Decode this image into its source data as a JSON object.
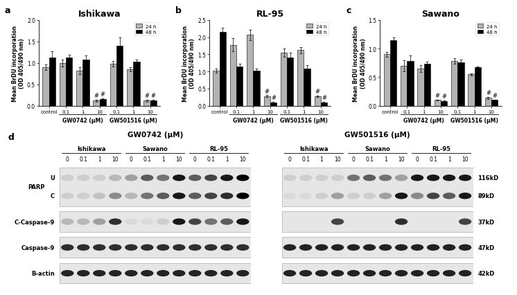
{
  "chart_data": [
    {
      "type": "bar",
      "panel": "a",
      "title": "Ishikawa",
      "y_label": "Mean BrDU incorporation\n(OD 405/490 nm)",
      "categories": [
        "control",
        "0.1",
        "1",
        "10",
        "0.1",
        "1",
        "10"
      ],
      "groups": [
        {
          "label": "GW0742 (μM)",
          "indices": [
            1,
            2,
            3
          ]
        },
        {
          "label": "GW501516 (μM)",
          "indices": [
            4,
            5,
            6
          ]
        }
      ],
      "series": [
        {
          "name": "24 h",
          "color": "#b3b3b3",
          "values": [
            0.9,
            1.0,
            0.82,
            0.12,
            0.98,
            0.85,
            0.12
          ],
          "errors": [
            0.06,
            0.08,
            0.08,
            0.02,
            0.07,
            0.05,
            0.02
          ],
          "notes": [
            null,
            null,
            null,
            "#",
            null,
            null,
            "#"
          ]
        },
        {
          "name": "48 h",
          "color": "#000000",
          "values": [
            1.12,
            1.13,
            1.08,
            0.15,
            1.4,
            1.03,
            0.12
          ],
          "errors": [
            0.15,
            0.06,
            0.1,
            0.02,
            0.2,
            0.05,
            0.02
          ],
          "notes": [
            null,
            null,
            null,
            "#",
            null,
            null,
            "#"
          ]
        }
      ],
      "ylim": [
        0,
        2.0
      ],
      "yticks": [
        {
          "value": 0,
          "label": "0.0"
        },
        {
          "value": 0.5,
          "label": "0.5"
        },
        {
          "value": 1.0,
          "label": "1.0"
        },
        {
          "value": 1.5,
          "label": "1.5"
        },
        {
          "value": 2.0,
          "label": "2.0"
        }
      ],
      "legend": "upper right"
    },
    {
      "type": "bar",
      "panel": "b",
      "title": "RL-95",
      "y_label": "Mean BrDU incorporation\n(OD 405/490 nm)",
      "categories": [
        "control",
        "0.1",
        "1",
        "10",
        "0.1",
        "1",
        "10"
      ],
      "groups": [
        {
          "label": "GW0742 (μM)",
          "indices": [
            1,
            2,
            3
          ]
        },
        {
          "label": "GW501516 (μM)",
          "indices": [
            4,
            5,
            6
          ]
        }
      ],
      "series": [
        {
          "name": "24 h",
          "color": "#b3b3b3",
          "values": [
            1.02,
            1.78,
            2.07,
            0.28,
            1.55,
            1.62,
            0.28
          ],
          "errors": [
            0.06,
            0.2,
            0.15,
            0.03,
            0.12,
            0.1,
            0.02
          ],
          "notes": [
            null,
            null,
            null,
            "#",
            null,
            null,
            "#"
          ]
        },
        {
          "name": "48 h",
          "color": "#000000",
          "values": [
            2.15,
            1.15,
            1.03,
            0.1,
            1.4,
            1.08,
            0.1
          ],
          "errors": [
            0.12,
            0.08,
            0.05,
            0.02,
            0.15,
            0.1,
            0.02
          ],
          "notes": [
            null,
            null,
            null,
            "#",
            null,
            null,
            "#"
          ]
        }
      ],
      "ylim": [
        0,
        2.5
      ],
      "yticks": [
        {
          "value": 0,
          "label": "0.0"
        },
        {
          "value": 0.5,
          "label": "0.5"
        },
        {
          "value": 1.0,
          "label": "1.0"
        },
        {
          "value": 1.5,
          "label": "1.5"
        },
        {
          "value": 2.0,
          "label": "2.0"
        },
        {
          "value": 2.5,
          "label": "2.5"
        }
      ],
      "legend": "upper right"
    },
    {
      "type": "bar",
      "panel": "c",
      "title": "Sawano",
      "y_label": "Mean BrDU incorporation\n(OD 405/490 nm)",
      "categories": [
        "control",
        "0.1",
        "1",
        "10",
        "0.1",
        "1",
        "10"
      ],
      "groups": [
        {
          "label": "GW0742 (μM)",
          "indices": [
            1,
            2,
            3
          ]
        },
        {
          "label": "GW501516 (μM)",
          "indices": [
            4,
            5,
            6
          ]
        }
      ],
      "series": [
        {
          "name": "24 h",
          "color": "#b3b3b3",
          "values": [
            0.9,
            0.7,
            0.65,
            0.1,
            0.78,
            0.55,
            0.14
          ],
          "errors": [
            0.04,
            0.1,
            0.06,
            0.01,
            0.05,
            0.02,
            0.02
          ],
          "notes": [
            null,
            null,
            null,
            "#",
            null,
            null,
            "#"
          ]
        },
        {
          "name": "48 h",
          "color": "#000000",
          "values": [
            1.15,
            0.78,
            0.73,
            0.08,
            0.76,
            0.68,
            0.1
          ],
          "errors": [
            0.05,
            0.1,
            0.04,
            0.01,
            0.05,
            0.01,
            0.01
          ],
          "notes": [
            null,
            null,
            null,
            "#",
            null,
            null,
            "#"
          ]
        }
      ],
      "ylim": [
        0,
        1.5
      ],
      "yticks": [
        {
          "value": 0,
          "label": "0.0"
        },
        {
          "value": 0.5,
          "label": "0.5"
        },
        {
          "value": 1.0,
          "label": "1.0"
        },
        {
          "value": 1.5,
          "label": "1.5"
        }
      ],
      "legend": "upper right"
    }
  ],
  "blot_panel": {
    "panel": "d",
    "rows": [
      {
        "name": "PARP",
        "bands": [
          {
            "label": "U",
            "size": "116kD"
          },
          {
            "label": "C",
            "size": "89kD"
          }
        ]
      },
      {
        "name": "C-Caspase-9",
        "bands": [
          {
            "size": "37kD"
          }
        ]
      },
      {
        "name": "Caspase-9",
        "bands": [
          {
            "size": "47kD"
          }
        ]
      },
      {
        "name": "B-actin",
        "bands": [
          {
            "size": "42kD"
          }
        ]
      }
    ],
    "blots": [
      {
        "title": "GW0742 (μM)",
        "cell_lines": [
          "Ishikawa",
          "Sawano",
          "RL-95"
        ],
        "doses": [
          "0",
          "0.1",
          "1",
          "10"
        ],
        "intensity": [
          [
            0.1,
            0.1,
            0.1,
            0.2,
            0.3,
            0.6,
            0.5,
            0.9,
            0.6,
            0.7,
            0.9,
            1.0
          ],
          [
            0.1,
            0.1,
            0.15,
            0.4,
            0.2,
            0.5,
            0.6,
            0.9,
            0.6,
            0.7,
            0.8,
            1.0
          ],
          [
            0.2,
            0.2,
            0.3,
            0.8,
            0.05,
            0.05,
            0.1,
            0.9,
            0.7,
            0.5,
            0.6,
            0.9
          ],
          [
            0.8,
            0.8,
            0.8,
            0.8,
            0.8,
            0.8,
            0.8,
            0.8,
            0.8,
            0.8,
            0.8,
            0.8
          ],
          [
            0.85,
            0.85,
            0.85,
            0.85,
            0.85,
            0.85,
            0.85,
            0.85,
            0.85,
            0.85,
            0.85,
            0.85
          ]
        ]
      },
      {
        "title": "GW501516 (μM)",
        "cell_lines": [
          "Ishikawa",
          "Sawano",
          "RL-95"
        ],
        "doses": [
          "0",
          "0.1",
          "1",
          "10"
        ],
        "intensity": [
          [
            0.1,
            0.1,
            0.1,
            0.1,
            0.5,
            0.6,
            0.5,
            0.3,
            0.9,
            0.9,
            0.9,
            0.9
          ],
          [
            0.05,
            0.05,
            0.1,
            0.3,
            0.1,
            0.1,
            0.3,
            0.9,
            0.4,
            0.7,
            0.6,
            0.9
          ],
          [
            0.0,
            0.0,
            0.0,
            0.7,
            0.0,
            0.0,
            0.0,
            0.8,
            0.0,
            0.0,
            0.0,
            0.7
          ],
          [
            0.85,
            0.85,
            0.85,
            0.85,
            0.85,
            0.85,
            0.85,
            0.85,
            0.85,
            0.85,
            0.85,
            0.85
          ],
          [
            0.85,
            0.85,
            0.85,
            0.85,
            0.85,
            0.85,
            0.85,
            0.85,
            0.85,
            0.85,
            0.85,
            0.85
          ]
        ]
      }
    ]
  }
}
